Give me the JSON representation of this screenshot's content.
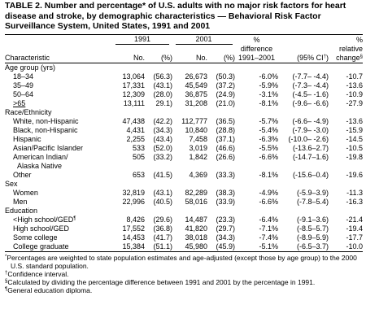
{
  "title": "TABLE 2. Number and percentage* of U.S. adults with no major risk factors for heart disease and stroke, by demographic characteristics — Behavioral Risk Factor Surveillance System, United States, 1991 and 2001",
  "header": {
    "year1": "1991",
    "year2": "2001",
    "pct_diff_line1": "%",
    "pct_diff_line2": "difference",
    "pct_diff_line3": "1991–2001",
    "ci": "(95% CI",
    "ci_mark": "†",
    "ci_close": ")",
    "rel_line1": "%",
    "rel_line2": "relative",
    "rel_line3": "change",
    "rel_mark": "§",
    "characteristic": "Characteristic",
    "no": "No.",
    "pct": "(%)"
  },
  "sections": [
    {
      "label": "Age group (yrs)",
      "rows": [
        {
          "label": "18–34",
          "n1": "13,064",
          "p1": "(56.3)",
          "n2": "26,673",
          "p2": "(50.3)",
          "diff": "-6.0%",
          "ci": "(-7.7– -4.4)",
          "rel": "-10.7"
        },
        {
          "label": "35–49",
          "n1": "17,331",
          "p1": "(43.1)",
          "n2": "45,549",
          "p2": "(37.2)",
          "diff": "-5.9%",
          "ci": "(-7.3– -4.4)",
          "rel": "-13.6"
        },
        {
          "label": "50–64",
          "n1": "12,309",
          "p1": "(28.0)",
          "n2": "36,875",
          "p2": "(24.9)",
          "diff": "-3.1%",
          "ci": "(-4.5– -1.6)",
          "rel": "-10.9"
        },
        {
          "label": ">65",
          "n1": "13,111",
          "p1": "29.1)",
          "n2": "31,208",
          "p2": "(21.0)",
          "diff": "-8.1%",
          "ci": "(-9.6– -6.6)",
          "rel": "-27.9",
          "underline_label": true
        }
      ]
    },
    {
      "label": "Race/Ethnicity",
      "rows": [
        {
          "label": "White, non-Hispanic",
          "n1": "47,438",
          "p1": "(42.2)",
          "n2": "112,777",
          "p2": "(36.5)",
          "diff": "-5.7%",
          "ci": "(-6.6– -4.9)",
          "rel": "-13.6"
        },
        {
          "label": "Black, non-Hispanic",
          "n1": "4,431",
          "p1": "(34.3)",
          "n2": "10,840",
          "p2": "(28.8)",
          "diff": "-5.4%",
          "ci": "(-7.9– -3.0)",
          "rel": "-15.9"
        },
        {
          "label": "Hispanic",
          "n1": "2,255",
          "p1": "(43.4)",
          "n2": "7,458",
          "p2": "(37.1)",
          "diff": "-6.3%",
          "ci": "(-10.0– -2.6)",
          "rel": "-14.5"
        },
        {
          "label": "Asian/Pacific Islander",
          "n1": "533",
          "p1": "(52.0)",
          "n2": "3,019",
          "p2": "(46.6)",
          "diff": "-5.5%",
          "ci": "(-13.6–2.7)",
          "rel": "-10.5"
        },
        {
          "label": "American Indian/",
          "label2": "Alaska Native",
          "n1": "505",
          "p1": "(33.2)",
          "n2": "1,842",
          "p2": "(26.6)",
          "diff": "-6.6%",
          "ci": "(-14.7–1.6)",
          "rel": "-19.8"
        },
        {
          "label": "Other",
          "n1": "653",
          "p1": "(41.5)",
          "n2": "4,369",
          "p2": "(33.3)",
          "diff": "-8.1%",
          "ci": "(-15.6–0.4)",
          "rel": "-19.6"
        }
      ]
    },
    {
      "label": "Sex",
      "rows": [
        {
          "label": "Women",
          "n1": "32,819",
          "p1": "(43.1)",
          "n2": "82,289",
          "p2": "(38.3)",
          "diff": "-4.9%",
          "ci": "(-5.9–3.9)",
          "rel": "-11.3"
        },
        {
          "label": "Men",
          "n1": "22,996",
          "p1": "(40.5)",
          "n2": "58,016",
          "p2": "(33.9)",
          "diff": "-6.6%",
          "ci": "(-7.8–5.4)",
          "rel": "-16.3"
        }
      ]
    },
    {
      "label": "Education",
      "rows": [
        {
          "label": "<High school/GED",
          "label_mark": "¶",
          "n1": "8,426",
          "p1": "(29.6)",
          "n2": "14,487",
          "p2": "(23.3)",
          "diff": "-6.4%",
          "ci": "(-9.1–3.6)",
          "rel": "-21.4"
        },
        {
          "label": "High school/GED",
          "n1": "17,552",
          "p1": "(36.8)",
          "n2": "41,820",
          "p2": "(29.7)",
          "diff": "-7.1%",
          "ci": "(-8.5–5.7)",
          "rel": "-19.4"
        },
        {
          "label": "Some college",
          "n1": "14,453",
          "p1": "(41.7)",
          "n2": "38,018",
          "p2": "(34.3)",
          "diff": "-7.4%",
          "ci": "(-8.9–5.9)",
          "rel": "-17.7"
        },
        {
          "label": "College graduate",
          "n1": "15,384",
          "p1": "(51.1)",
          "n2": "45,980",
          "p2": "(45.9)",
          "diff": "-5.1%",
          "ci": "(-6.5–3.7)",
          "rel": "-10.0"
        }
      ]
    }
  ],
  "footnotes": [
    {
      "mark": "*",
      "text": "Percentages are weighted to state population estimates and age-adjusted (except those by age group) to the 2000 U.S. standard population."
    },
    {
      "mark": "†",
      "text": "Confidence interval."
    },
    {
      "mark": "§",
      "text": "Calculated by dividing the percentage difference between 1991 and 2001 by the percentage in 1991."
    },
    {
      "mark": "¶",
      "text": "General education diploma."
    }
  ]
}
